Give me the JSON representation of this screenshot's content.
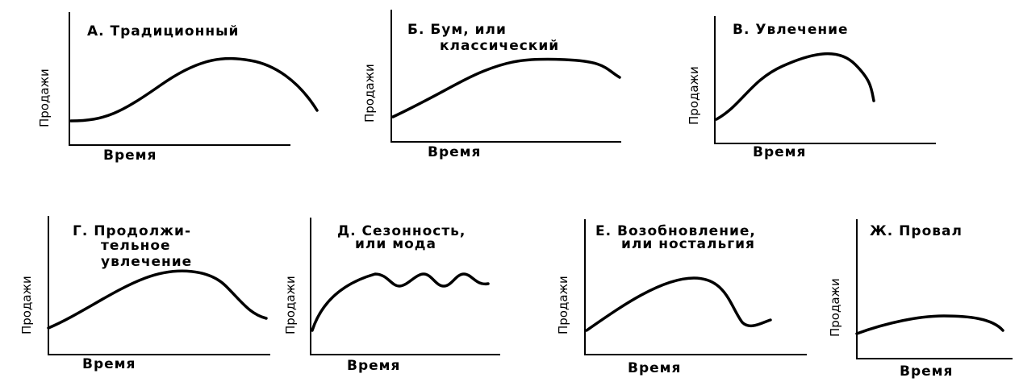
{
  "panels": [
    {
      "title": [
        "А. Традиционный"
      ],
      "y_label": "Продажи",
      "x_label": "Время"
    },
    {
      "title": [
        "Б. Бум, или",
        "классический"
      ],
      "y_label": "Продажи",
      "x_label": "Время"
    },
    {
      "title": [
        "В. Увлечение"
      ],
      "y_label": "Продажи",
      "x_label": "Время"
    },
    {
      "title": [
        "Г. Продолжи-",
        "тельное",
        "увлечение"
      ],
      "y_label": "Продажи",
      "x_label": "Время"
    },
    {
      "title": [
        "Д. Сезонность,",
        "или мода"
      ],
      "y_label": "Продажи",
      "x_label": "Время"
    },
    {
      "title": [
        "Е. Возобновление,",
        "или ностальгия"
      ],
      "y_label": "Продажи",
      "x_label": "Время"
    },
    {
      "title": [
        "Ж. Провал"
      ],
      "y_label": "Продажи",
      "x_label": "Время"
    }
  ]
}
